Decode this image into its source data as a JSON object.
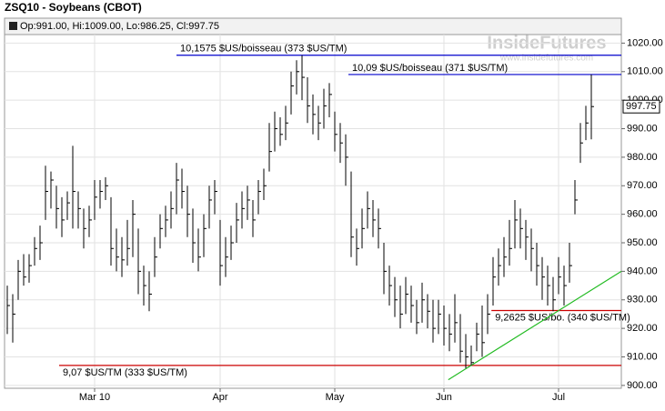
{
  "chart_data": {
    "type": "ohlc",
    "title": "ZSQ10 - Soybeans (CBOT)",
    "subtitle": "Op:991.00, Hi:1009.00, Lo:986.25, Cl:997.75",
    "watermark": "InsideFutures",
    "watermark_url": "www.insidefutures.com",
    "color": "#000000",
    "high": [
      935,
      932,
      944,
      946,
      946,
      952,
      956,
      977,
      975,
      970,
      966,
      968,
      984,
      968,
      962,
      963,
      972,
      972,
      973,
      966,
      955,
      952,
      958,
      965,
      955,
      942,
      940,
      952,
      960,
      963,
      968,
      978,
      976,
      970,
      962,
      955,
      960,
      970,
      972,
      958,
      952,
      956,
      964,
      968,
      970,
      965,
      972,
      976,
      992,
      996,
      994,
      998,
      1010,
      1014,
      1015.75,
      1008,
      1002,
      998,
      1004,
      1006,
      996,
      992,
      988,
      975,
      955,
      962,
      968,
      965,
      962,
      950,
      942,
      938,
      935,
      938,
      935,
      930,
      936,
      932,
      930,
      930,
      928,
      925,
      932,
      925,
      918,
      914,
      922,
      928,
      932,
      945,
      948,
      952,
      958,
      965,
      962,
      958,
      955,
      950,
      945,
      942,
      938,
      945,
      942,
      950,
      972,
      992,
      998,
      1009
    ],
    "low": [
      918,
      915,
      930,
      935,
      936,
      942,
      944,
      958,
      962,
      955,
      952,
      958,
      955,
      955,
      948,
      952,
      958,
      962,
      965,
      942,
      940,
      938,
      942,
      945,
      932,
      928,
      926,
      938,
      948,
      952,
      955,
      960,
      962,
      952,
      943,
      940,
      945,
      955,
      960,
      935,
      938,
      944,
      950,
      955,
      958,
      952,
      960,
      965,
      975,
      982,
      984,
      986,
      995,
      1002,
      1000,
      992,
      988,
      986,
      990,
      994,
      982,
      978,
      970,
      945,
      942,
      948,
      955,
      952,
      948,
      932,
      928,
      924,
      920,
      925,
      922,
      918,
      922,
      920,
      915,
      918,
      914,
      912,
      915,
      908,
      906,
      907,
      912,
      910,
      918,
      928,
      935,
      938,
      942,
      948,
      948,
      944,
      940,
      935,
      930,
      928,
      926,
      932,
      928,
      936,
      960,
      978,
      986,
      986.25
    ],
    "close": [
      928,
      925,
      940,
      938,
      942,
      948,
      950,
      968,
      972,
      962,
      958,
      964,
      968,
      962,
      955,
      958,
      966,
      968,
      970,
      948,
      945,
      944,
      948,
      960,
      940,
      935,
      932,
      945,
      955,
      958,
      962,
      972,
      968,
      960,
      950,
      945,
      955,
      965,
      968,
      942,
      945,
      950,
      958,
      962,
      965,
      958,
      968,
      970,
      982,
      990,
      988,
      992,
      1005,
      1010,
      1008,
      998,
      995,
      992,
      998,
      1002,
      988,
      985,
      980,
      952,
      948,
      955,
      962,
      958,
      955,
      940,
      935,
      930,
      925,
      932,
      928,
      922,
      930,
      926,
      920,
      925,
      920,
      918,
      922,
      912,
      910,
      908,
      918,
      915,
      925,
      938,
      942,
      945,
      948,
      958,
      955,
      952,
      948,
      942,
      938,
      935,
      930,
      938,
      935,
      942,
      965,
      985,
      992,
      997.75
    ],
    "xlim": [
      -0.5,
      112.5
    ],
    "xticks": [
      {
        "value": 16,
        "label": "Mar 10"
      },
      {
        "value": 39,
        "label": "Apr"
      },
      {
        "value": 60,
        "label": "May"
      },
      {
        "value": 80,
        "label": "Jun"
      },
      {
        "value": 101,
        "label": "Jul"
      }
    ],
    "ylim": [
      899,
      1023
    ],
    "yticks": [
      {
        "value": 900,
        "label": "900.00"
      },
      {
        "value": 910,
        "label": "910.00"
      },
      {
        "value": 920,
        "label": "920.00"
      },
      {
        "value": 930,
        "label": "930.00"
      },
      {
        "value": 940,
        "label": "940.00"
      },
      {
        "value": 950,
        "label": "950.00"
      },
      {
        "value": 960,
        "label": "960.00"
      },
      {
        "value": 970,
        "label": "970.00"
      },
      {
        "value": 980,
        "label": "980.00"
      },
      {
        "value": 990,
        "label": "990.00"
      },
      {
        "value": 1000,
        "label": "1000.00"
      },
      {
        "value": 1010,
        "label": "1010.00"
      },
      {
        "value": 1020,
        "label": "1020.00"
      }
    ],
    "hlines": [
      {
        "value": 1015.75,
        "x_start": 31,
        "label": "10,1575 $US/boisseau (373 $US/TM)",
        "color": "#0000cc"
      },
      {
        "value": 1009,
        "x_start": 62.5,
        "label": "10,09 $US/boisseau (371 $US/TM)",
        "color": "#0000cc"
      },
      {
        "value": 926.25,
        "x_start": 88.7,
        "label": "9,2625 $US/bo. (340 $US/TM)",
        "color": "#cc0000"
      },
      {
        "value": 907,
        "x_start": 9.5,
        "label": "9,07 $US/TM (333 $US/TM)",
        "color": "#cc0000"
      }
    ],
    "trendline": {
      "x": [
        80.8,
        112.5
      ],
      "y": [
        902,
        940
      ],
      "color": "#22bb22"
    }
  }
}
